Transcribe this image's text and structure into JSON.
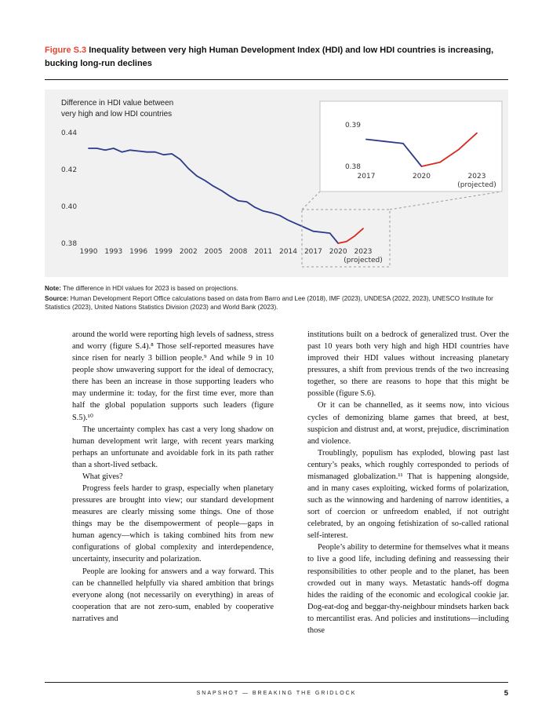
{
  "colors": {
    "figure_label": "#e8432f",
    "line_actual": "#2d3a8c",
    "line_projected": "#d52b1e",
    "panel_bg": "#f1f1f1"
  },
  "figure": {
    "label": "Figure S.3",
    "title": "Inequality between very high Human Development Index (HDI) and low HDI countries is increasing, bucking long-run declines",
    "note_label": "Note:",
    "note_text": "The difference in HDI values for 2023 is based on projections.",
    "source_label": "Source:",
    "source_text": "Human Development Report Office calculations based on data from Barro and Lee (2018), IMF (2023), UNDESA (2022, 2023), UNESCO Institute for Statistics (2023), United Nations Statistics Division (2023) and World Bank (2023)."
  },
  "chart_data": {
    "type": "line",
    "title": "Difference in HDI value between very high and low HDI countries",
    "title_lines": [
      "Difference in HDI value between",
      "very high and low HDI countries"
    ],
    "xlabel": "",
    "ylabel": "Difference in HDI value",
    "ylim": [
      0.38,
      0.44
    ],
    "yticks": [
      0.44,
      0.42,
      0.4,
      0.38
    ],
    "xticks": [
      1990,
      1993,
      1996,
      1999,
      2002,
      2005,
      2008,
      2011,
      2014,
      2017,
      2020,
      2023
    ],
    "xtick_note": "(projected)",
    "grid": false,
    "legend": "none",
    "x": [
      1990,
      1991,
      1992,
      1993,
      1994,
      1995,
      1996,
      1997,
      1998,
      1999,
      2000,
      2001,
      2002,
      2003,
      2004,
      2005,
      2006,
      2007,
      2008,
      2009,
      2010,
      2011,
      2012,
      2013,
      2014,
      2015,
      2016,
      2017,
      2018,
      2019,
      2020,
      2021,
      2022,
      2023
    ],
    "series": [
      {
        "name": "Difference in HDI value (actual)",
        "color": "#2d3a8c",
        "values": [
          0.4315,
          0.4315,
          0.4305,
          0.4315,
          0.4295,
          0.4305,
          0.43,
          0.4295,
          0.4295,
          0.428,
          0.4285,
          0.4255,
          0.4205,
          0.4165,
          0.414,
          0.411,
          0.4085,
          0.4055,
          0.403,
          0.4025,
          0.3995,
          0.3975,
          0.3965,
          0.395,
          0.3925,
          0.3905,
          0.3885,
          0.3865,
          0.386,
          0.3855,
          0.38,
          null,
          null,
          null
        ]
      },
      {
        "name": "2023 projection",
        "color": "#d52b1e",
        "values": [
          null,
          null,
          null,
          null,
          null,
          null,
          null,
          null,
          null,
          null,
          null,
          null,
          null,
          null,
          null,
          null,
          null,
          null,
          null,
          null,
          null,
          null,
          null,
          null,
          null,
          null,
          null,
          null,
          null,
          null,
          0.38,
          0.381,
          0.384,
          0.388
        ]
      }
    ],
    "inset": {
      "description": "Zoom of 2017-2023 region",
      "ylim": [
        0.378,
        0.392
      ],
      "yticks": [
        0.39,
        0.38
      ],
      "xticks": [
        2017,
        2020,
        2023
      ],
      "xtick_note": "(projected)",
      "x_range": [
        2017,
        2023
      ]
    }
  },
  "body": {
    "left_column": [
      {
        "indent": false,
        "text": "around the world were reporting high levels of sadness, stress and worry (figure S.4).⁸ Those self-reported measures have since risen for nearly 3 billion people.⁹ And while 9 in 10 people show unwavering support for the ideal of democracy, there has been an increase in those supporting leaders who may undermine it: today, for the first time ever, more than half the global population supports such leaders (figure S.5).¹⁰"
      },
      {
        "indent": true,
        "text": "The uncertainty complex has cast a very long shadow on human development writ large, with recent years marking perhaps an unfortunate and avoidable fork in its path rather than a short-lived setback."
      },
      {
        "indent": true,
        "text": "What gives?"
      },
      {
        "indent": true,
        "text": "Progress feels harder to grasp, especially when planetary pressures are brought into view; our standard development measures are clearly missing some things. One of those things may be the disempowerment of people—gaps in human agency—which is taking combined hits from new configurations of global complexity and interdependence, uncertainty, insecurity and polarization."
      },
      {
        "indent": true,
        "text": "People are looking for answers and a way forward. This can be channelled helpfully via shared ambition that brings everyone along (not necessarily on everything) in areas of cooperation that are not zero-sum, enabled by cooperative narratives and"
      }
    ],
    "right_column": [
      {
        "indent": false,
        "text": "institutions built on a bedrock of generalized trust. Over the past 10 years both very high and high HDI countries have improved their HDI values without increasing planetary pressures, a shift from previous trends of the two increasing together, so there are reasons to hope that this might be possible (figure S.6)."
      },
      {
        "indent": true,
        "text": "Or it can be channelled, as it seems now, into vicious cycles of demonizing blame games that breed, at best, suspicion and distrust and, at worst, prejudice, discrimination and violence."
      },
      {
        "indent": true,
        "text": "Troublingly, populism has exploded, blowing past last century’s peaks, which roughly corresponded to periods of mismanaged globalization.¹¹ That is happening alongside, and in many cases exploiting, wicked forms of polarization, such as the winnowing and hardening of narrow identities, a sort of coercion or unfreedom enabled, if not outright celebrated, by an ongoing fetishization of so-called rational self-interest."
      },
      {
        "indent": true,
        "text": "People’s ability to determine for themselves what it means to live a good life, including defining and reassessing their responsibilities to other people and to the planet, has been crowded out in many ways. Metastatic hands-off dogma hides the raiding of the economic and ecological cookie jar. Dog-eat-dog and beggar-thy-neighbour mindsets harken back to mercantilist eras. And policies and institutions—including those"
      }
    ]
  },
  "footer": {
    "text": "SNAPSHOT — BREAKING THE GRIDLOCK",
    "page_number": "5"
  }
}
